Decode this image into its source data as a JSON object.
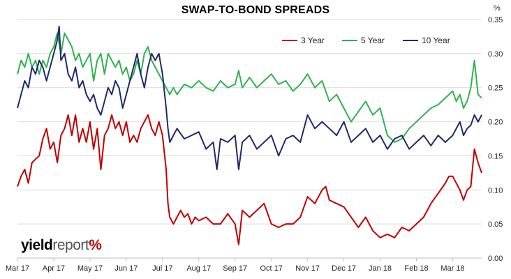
{
  "chart_data": {
    "type": "line",
    "title": "SWAP-TO-BOND SPREADS",
    "y_unit_label": "%",
    "ylim": [
      0,
      0.35
    ],
    "y_ticks": [
      "0.00",
      "0.05",
      "0.10",
      "0.15",
      "0.20",
      "0.25",
      "0.30",
      "0.35"
    ],
    "x_ticks": [
      "Mar 17",
      "Apr 17",
      "May 17",
      "Jun 17",
      "Jul 17",
      "Aug 17",
      "Sep 17",
      "Oct 17",
      "Nov 17",
      "Dec 17",
      "Jan 18",
      "Feb 18",
      "Mar 18"
    ],
    "x_range_months": [
      0,
      12.8
    ],
    "grid": "horizontal",
    "legend_position": "top-right",
    "series": [
      {
        "name": "3 Year",
        "color": "#c00000",
        "points": [
          [
            0.0,
            0.105
          ],
          [
            0.1,
            0.12
          ],
          [
            0.2,
            0.13
          ],
          [
            0.3,
            0.11
          ],
          [
            0.4,
            0.14
          ],
          [
            0.5,
            0.145
          ],
          [
            0.6,
            0.15
          ],
          [
            0.7,
            0.175
          ],
          [
            0.8,
            0.19
          ],
          [
            0.9,
            0.16
          ],
          [
            1.0,
            0.17
          ],
          [
            1.1,
            0.14
          ],
          [
            1.2,
            0.18
          ],
          [
            1.3,
            0.19
          ],
          [
            1.4,
            0.21
          ],
          [
            1.5,
            0.18
          ],
          [
            1.6,
            0.21
          ],
          [
            1.7,
            0.17
          ],
          [
            1.8,
            0.19
          ],
          [
            1.9,
            0.17
          ],
          [
            2.0,
            0.2
          ],
          [
            2.1,
            0.16
          ],
          [
            2.2,
            0.19
          ],
          [
            2.3,
            0.13
          ],
          [
            2.4,
            0.18
          ],
          [
            2.5,
            0.19
          ],
          [
            2.6,
            0.21
          ],
          [
            2.7,
            0.19
          ],
          [
            2.8,
            0.2
          ],
          [
            2.9,
            0.18
          ],
          [
            3.0,
            0.2
          ],
          [
            3.1,
            0.17
          ],
          [
            3.2,
            0.18
          ],
          [
            3.3,
            0.17
          ],
          [
            3.4,
            0.19
          ],
          [
            3.5,
            0.2
          ],
          [
            3.6,
            0.21
          ],
          [
            3.7,
            0.19
          ],
          [
            3.8,
            0.18
          ],
          [
            3.9,
            0.2
          ],
          [
            4.0,
            0.18
          ],
          [
            4.1,
            0.13
          ],
          [
            4.15,
            0.08
          ],
          [
            4.2,
            0.06
          ],
          [
            4.3,
            0.05
          ],
          [
            4.4,
            0.06
          ],
          [
            4.5,
            0.07
          ],
          [
            4.6,
            0.06
          ],
          [
            4.7,
            0.065
          ],
          [
            4.8,
            0.05
          ],
          [
            4.9,
            0.06
          ],
          [
            5.0,
            0.055
          ],
          [
            5.2,
            0.06
          ],
          [
            5.4,
            0.05
          ],
          [
            5.6,
            0.05
          ],
          [
            5.8,
            0.065
          ],
          [
            6.0,
            0.05
          ],
          [
            6.1,
            0.02
          ],
          [
            6.2,
            0.07
          ],
          [
            6.4,
            0.06
          ],
          [
            6.6,
            0.07
          ],
          [
            6.8,
            0.08
          ],
          [
            7.0,
            0.05
          ],
          [
            7.2,
            0.045
          ],
          [
            7.4,
            0.05
          ],
          [
            7.6,
            0.05
          ],
          [
            7.8,
            0.06
          ],
          [
            8.0,
            0.09
          ],
          [
            8.2,
            0.08
          ],
          [
            8.4,
            0.1
          ],
          [
            8.5,
            0.105
          ],
          [
            8.6,
            0.085
          ],
          [
            8.8,
            0.08
          ],
          [
            9.0,
            0.075
          ],
          [
            9.2,
            0.06
          ],
          [
            9.4,
            0.045
          ],
          [
            9.6,
            0.06
          ],
          [
            9.8,
            0.04
          ],
          [
            10.0,
            0.03
          ],
          [
            10.2,
            0.035
          ],
          [
            10.4,
            0.03
          ],
          [
            10.6,
            0.045
          ],
          [
            10.8,
            0.04
          ],
          [
            11.0,
            0.05
          ],
          [
            11.2,
            0.06
          ],
          [
            11.4,
            0.08
          ],
          [
            11.6,
            0.095
          ],
          [
            11.8,
            0.11
          ],
          [
            11.9,
            0.12
          ],
          [
            12.0,
            0.12
          ],
          [
            12.2,
            0.1
          ],
          [
            12.3,
            0.085
          ],
          [
            12.4,
            0.1
          ],
          [
            12.5,
            0.105
          ],
          [
            12.6,
            0.16
          ],
          [
            12.7,
            0.14
          ],
          [
            12.8,
            0.125
          ]
        ]
      },
      {
        "name": "5 Year",
        "color": "#2eb34e",
        "points": [
          [
            0.0,
            0.27
          ],
          [
            0.1,
            0.29
          ],
          [
            0.2,
            0.28
          ],
          [
            0.3,
            0.3
          ],
          [
            0.4,
            0.28
          ],
          [
            0.5,
            0.29
          ],
          [
            0.6,
            0.27
          ],
          [
            0.7,
            0.29
          ],
          [
            0.8,
            0.28
          ],
          [
            0.9,
            0.3
          ],
          [
            1.0,
            0.31
          ],
          [
            1.1,
            0.33
          ],
          [
            1.2,
            0.3
          ],
          [
            1.3,
            0.33
          ],
          [
            1.4,
            0.32
          ],
          [
            1.5,
            0.31
          ],
          [
            1.6,
            0.29
          ],
          [
            1.7,
            0.3
          ],
          [
            1.8,
            0.28
          ],
          [
            1.9,
            0.29
          ],
          [
            2.0,
            0.3
          ],
          [
            2.1,
            0.26
          ],
          [
            2.2,
            0.29
          ],
          [
            2.3,
            0.3
          ],
          [
            2.4,
            0.27
          ],
          [
            2.5,
            0.3
          ],
          [
            2.6,
            0.29
          ],
          [
            2.7,
            0.28
          ],
          [
            2.8,
            0.29
          ],
          [
            2.9,
            0.27
          ],
          [
            3.0,
            0.28
          ],
          [
            3.1,
            0.26
          ],
          [
            3.2,
            0.27
          ],
          [
            3.3,
            0.29
          ],
          [
            3.4,
            0.27
          ],
          [
            3.5,
            0.3
          ],
          [
            3.6,
            0.31
          ],
          [
            3.7,
            0.29
          ],
          [
            3.8,
            0.28
          ],
          [
            3.9,
            0.27
          ],
          [
            4.0,
            0.26
          ],
          [
            4.1,
            0.25
          ],
          [
            4.2,
            0.24
          ],
          [
            4.3,
            0.25
          ],
          [
            4.4,
            0.24
          ],
          [
            4.6,
            0.255
          ],
          [
            4.8,
            0.25
          ],
          [
            5.0,
            0.26
          ],
          [
            5.2,
            0.25
          ],
          [
            5.4,
            0.245
          ],
          [
            5.6,
            0.26
          ],
          [
            5.8,
            0.25
          ],
          [
            6.0,
            0.255
          ],
          [
            6.1,
            0.275
          ],
          [
            6.2,
            0.25
          ],
          [
            6.4,
            0.265
          ],
          [
            6.6,
            0.25
          ],
          [
            6.8,
            0.26
          ],
          [
            7.0,
            0.27
          ],
          [
            7.2,
            0.255
          ],
          [
            7.4,
            0.26
          ],
          [
            7.6,
            0.245
          ],
          [
            7.8,
            0.255
          ],
          [
            8.0,
            0.27
          ],
          [
            8.2,
            0.25
          ],
          [
            8.4,
            0.26
          ],
          [
            8.6,
            0.23
          ],
          [
            8.8,
            0.24
          ],
          [
            9.0,
            0.22
          ],
          [
            9.2,
            0.2
          ],
          [
            9.4,
            0.215
          ],
          [
            9.6,
            0.23
          ],
          [
            9.8,
            0.21
          ],
          [
            10.0,
            0.22
          ],
          [
            10.2,
            0.18
          ],
          [
            10.4,
            0.17
          ],
          [
            10.6,
            0.175
          ],
          [
            10.8,
            0.19
          ],
          [
            11.0,
            0.2
          ],
          [
            11.2,
            0.21
          ],
          [
            11.4,
            0.22
          ],
          [
            11.6,
            0.225
          ],
          [
            11.8,
            0.235
          ],
          [
            12.0,
            0.245
          ],
          [
            12.1,
            0.23
          ],
          [
            12.2,
            0.24
          ],
          [
            12.3,
            0.22
          ],
          [
            12.4,
            0.23
          ],
          [
            12.5,
            0.25
          ],
          [
            12.6,
            0.29
          ],
          [
            12.7,
            0.24
          ],
          [
            12.8,
            0.235
          ]
        ]
      },
      {
        "name": "10 Year",
        "color": "#1f2a6b",
        "points": [
          [
            0.0,
            0.22
          ],
          [
            0.1,
            0.24
          ],
          [
            0.2,
            0.26
          ],
          [
            0.3,
            0.25
          ],
          [
            0.4,
            0.28
          ],
          [
            0.5,
            0.27
          ],
          [
            0.6,
            0.29
          ],
          [
            0.7,
            0.28
          ],
          [
            0.8,
            0.26
          ],
          [
            0.9,
            0.28
          ],
          [
            1.0,
            0.3
          ],
          [
            1.1,
            0.32
          ],
          [
            1.15,
            0.34
          ],
          [
            1.2,
            0.29
          ],
          [
            1.3,
            0.3
          ],
          [
            1.4,
            0.27
          ],
          [
            1.5,
            0.26
          ],
          [
            1.6,
            0.28
          ],
          [
            1.7,
            0.25
          ],
          [
            1.8,
            0.26
          ],
          [
            1.9,
            0.24
          ],
          [
            2.0,
            0.23
          ],
          [
            2.1,
            0.24
          ],
          [
            2.2,
            0.22
          ],
          [
            2.3,
            0.21
          ],
          [
            2.4,
            0.23
          ],
          [
            2.5,
            0.25
          ],
          [
            2.6,
            0.24
          ],
          [
            2.7,
            0.26
          ],
          [
            2.8,
            0.25
          ],
          [
            2.9,
            0.22
          ],
          [
            3.0,
            0.24
          ],
          [
            3.1,
            0.26
          ],
          [
            3.2,
            0.28
          ],
          [
            3.3,
            0.3
          ],
          [
            3.4,
            0.27
          ],
          [
            3.5,
            0.25
          ],
          [
            3.6,
            0.28
          ],
          [
            3.7,
            0.3
          ],
          [
            3.8,
            0.29
          ],
          [
            3.9,
            0.3
          ],
          [
            4.0,
            0.27
          ],
          [
            4.1,
            0.22
          ],
          [
            4.15,
            0.19
          ],
          [
            4.2,
            0.17
          ],
          [
            4.3,
            0.18
          ],
          [
            4.4,
            0.19
          ],
          [
            4.6,
            0.175
          ],
          [
            4.8,
            0.18
          ],
          [
            5.0,
            0.185
          ],
          [
            5.2,
            0.16
          ],
          [
            5.4,
            0.17
          ],
          [
            5.5,
            0.13
          ],
          [
            5.6,
            0.175
          ],
          [
            5.8,
            0.17
          ],
          [
            6.0,
            0.18
          ],
          [
            6.1,
            0.13
          ],
          [
            6.2,
            0.17
          ],
          [
            6.4,
            0.18
          ],
          [
            6.6,
            0.16
          ],
          [
            6.8,
            0.17
          ],
          [
            7.0,
            0.18
          ],
          [
            7.2,
            0.15
          ],
          [
            7.4,
            0.175
          ],
          [
            7.6,
            0.18
          ],
          [
            7.8,
            0.17
          ],
          [
            8.0,
            0.21
          ],
          [
            8.2,
            0.19
          ],
          [
            8.4,
            0.2
          ],
          [
            8.6,
            0.19
          ],
          [
            8.8,
            0.18
          ],
          [
            9.0,
            0.2
          ],
          [
            9.2,
            0.17
          ],
          [
            9.4,
            0.18
          ],
          [
            9.6,
            0.19
          ],
          [
            9.8,
            0.17
          ],
          [
            10.0,
            0.18
          ],
          [
            10.2,
            0.16
          ],
          [
            10.4,
            0.175
          ],
          [
            10.6,
            0.18
          ],
          [
            10.8,
            0.16
          ],
          [
            11.0,
            0.17
          ],
          [
            11.2,
            0.18
          ],
          [
            11.4,
            0.165
          ],
          [
            11.6,
            0.18
          ],
          [
            11.8,
            0.17
          ],
          [
            12.0,
            0.18
          ],
          [
            12.2,
            0.2
          ],
          [
            12.3,
            0.18
          ],
          [
            12.4,
            0.19
          ],
          [
            12.5,
            0.195
          ],
          [
            12.6,
            0.21
          ],
          [
            12.7,
            0.2
          ],
          [
            12.8,
            0.21
          ]
        ]
      }
    ]
  },
  "watermark": {
    "part1": "yield",
    "part2": "report",
    "part3": "%"
  }
}
